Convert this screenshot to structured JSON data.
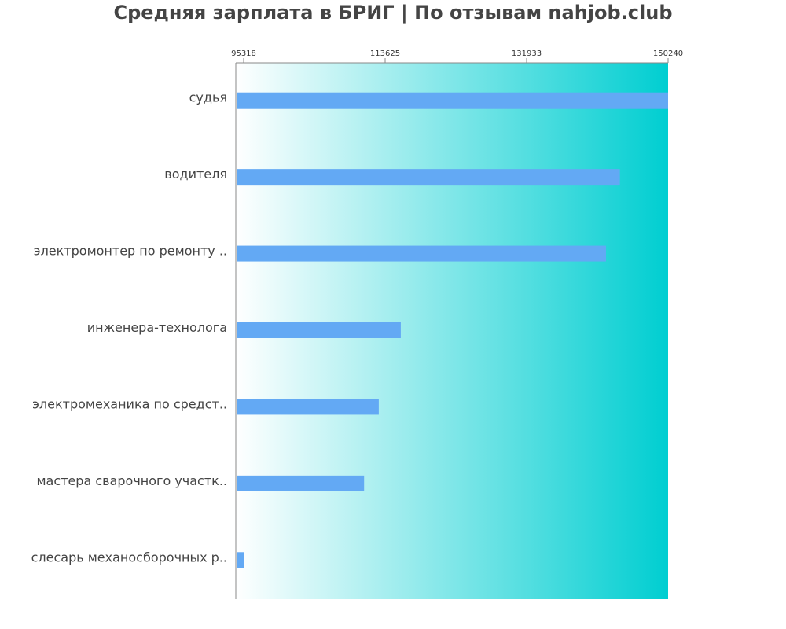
{
  "chart_data": {
    "type": "bar",
    "orientation": "horizontal",
    "title": "Средняя зарплата в БРИГ | По отзывам nahjob.club",
    "categories": [
      "судья",
      "водителя",
      "электромонтер по ремонту ..",
      "инженера-технолога",
      "электромеханика по средст..",
      "мастера сварочного участк..",
      "слесарь механосборочных р.."
    ],
    "values": [
      150240,
      144000,
      142200,
      115650,
      112800,
      110900,
      95400
    ],
    "xticks": [
      "95318",
      "113625",
      "131933",
      "150240"
    ],
    "xtick_values": [
      95318,
      113625,
      131933,
      150240
    ],
    "xlim": [
      94300,
      150240
    ],
    "axis_position": "top",
    "grid": false,
    "colors": {
      "bar": "#63a9f4",
      "background_start": "#ffffff",
      "background_end": "#00ced1",
      "text": "#444444"
    }
  }
}
